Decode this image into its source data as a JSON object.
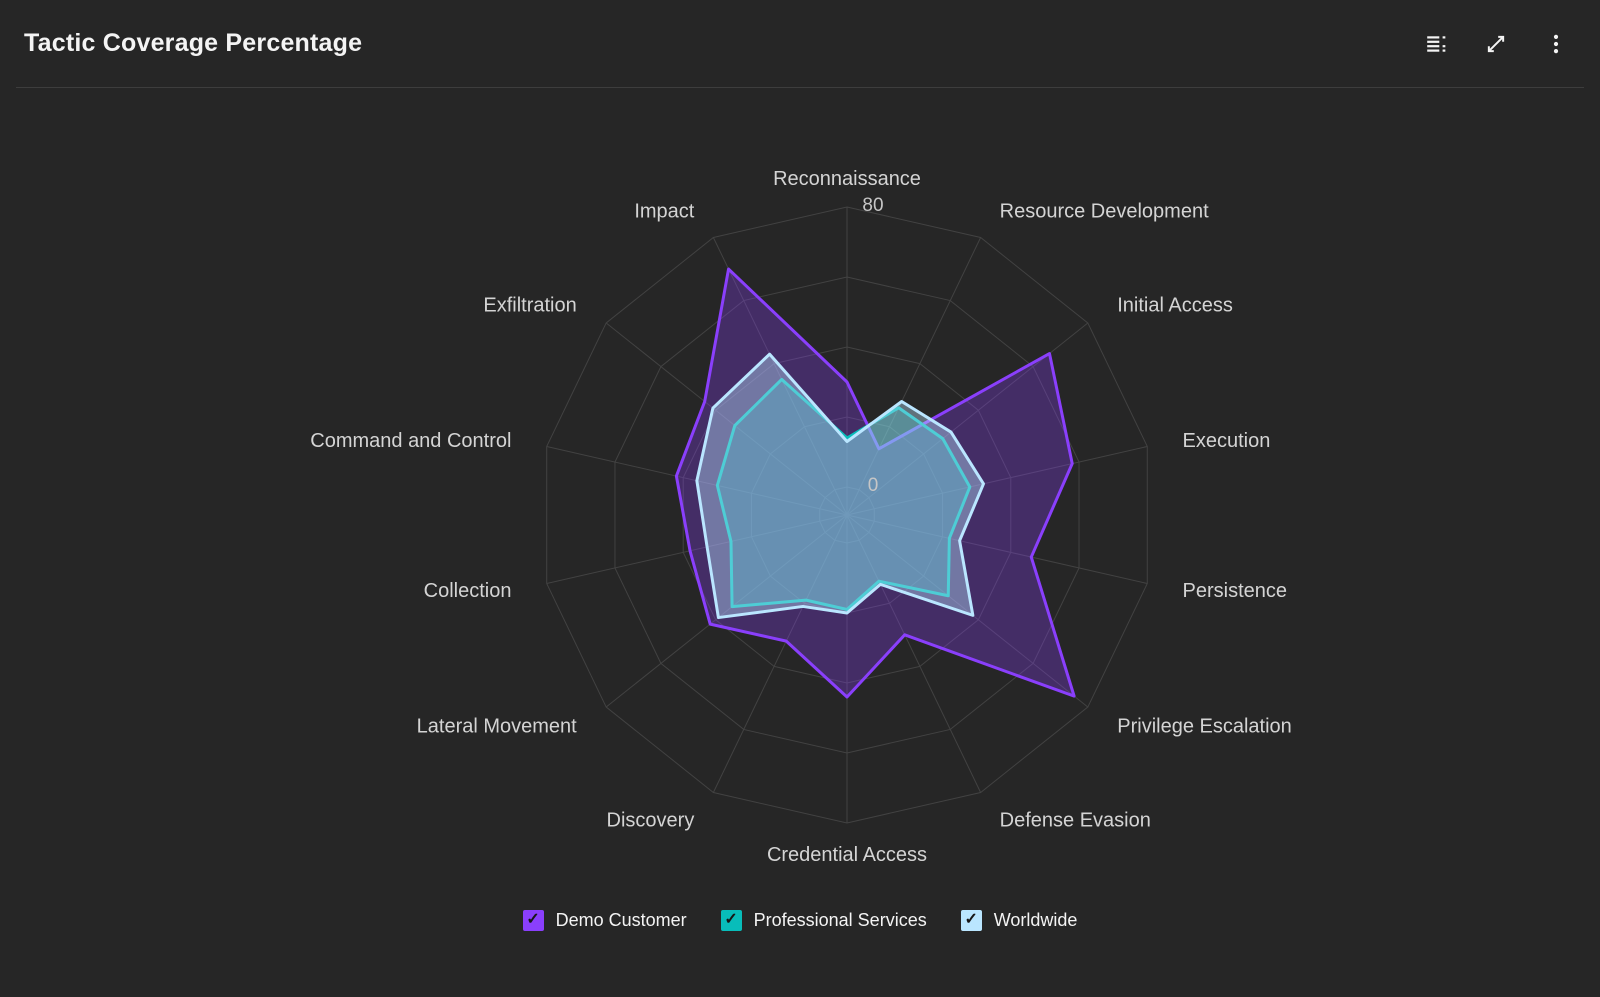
{
  "header": {
    "title": "Tactic Coverage Percentage",
    "icons": [
      {
        "name": "table-of-contents-icon"
      },
      {
        "name": "expand-icon"
      },
      {
        "name": "overflow-menu-icon"
      }
    ]
  },
  "chart_data": {
    "type": "radar",
    "title": "Tactic Coverage Percentage",
    "categories": [
      "Reconnaissance",
      "Resource Development",
      "Initial Access",
      "Execution",
      "Persistence",
      "Privilege Escalation",
      "Defense Evasion",
      "Credential Access",
      "Discovery",
      "Lateral Movement",
      "Collection",
      "Command and Control",
      "Exfiltration",
      "Impact"
    ],
    "series": [
      {
        "name": "Demo Customer",
        "color": "#8a3ffc",
        "fill_opacity": 0.3,
        "values": [
          30,
          13,
          66,
          58,
          46,
          75,
          30,
          44,
          32,
          42,
          38,
          42,
          44,
          70
        ]
      },
      {
        "name": "Professional Services",
        "color": "#08bdba",
        "fill_opacity": 0.3,
        "values": [
          14,
          26,
          27,
          28,
          22,
          29,
          13,
          19,
          19,
          34,
          26,
          30,
          33,
          35
        ]
      },
      {
        "name": "Worldwide",
        "color": "#bae6ff",
        "fill_opacity": 0.4,
        "values": [
          13,
          28,
          30,
          32,
          25,
          38,
          14,
          20,
          21,
          39,
          33,
          36,
          41,
          43
        ]
      }
    ],
    "scale": {
      "min": 0,
      "max": 80,
      "rings": 5,
      "ticks": [
        {
          "label": "0",
          "value": 0
        },
        {
          "label": "80",
          "value": 80
        }
      ]
    },
    "grid": true,
    "legend_position": "bottom",
    "colors": {
      "background": "#262626",
      "grid_line": "#424242",
      "axis_label": "#d4d4d4",
      "tick_label": "#c6c6c6",
      "checkmark": "#161616"
    }
  },
  "legend": {
    "items": [
      {
        "label": "Demo Customer",
        "checked": true
      },
      {
        "label": "Professional Services",
        "checked": true
      },
      {
        "label": "Worldwide",
        "checked": true
      }
    ]
  }
}
